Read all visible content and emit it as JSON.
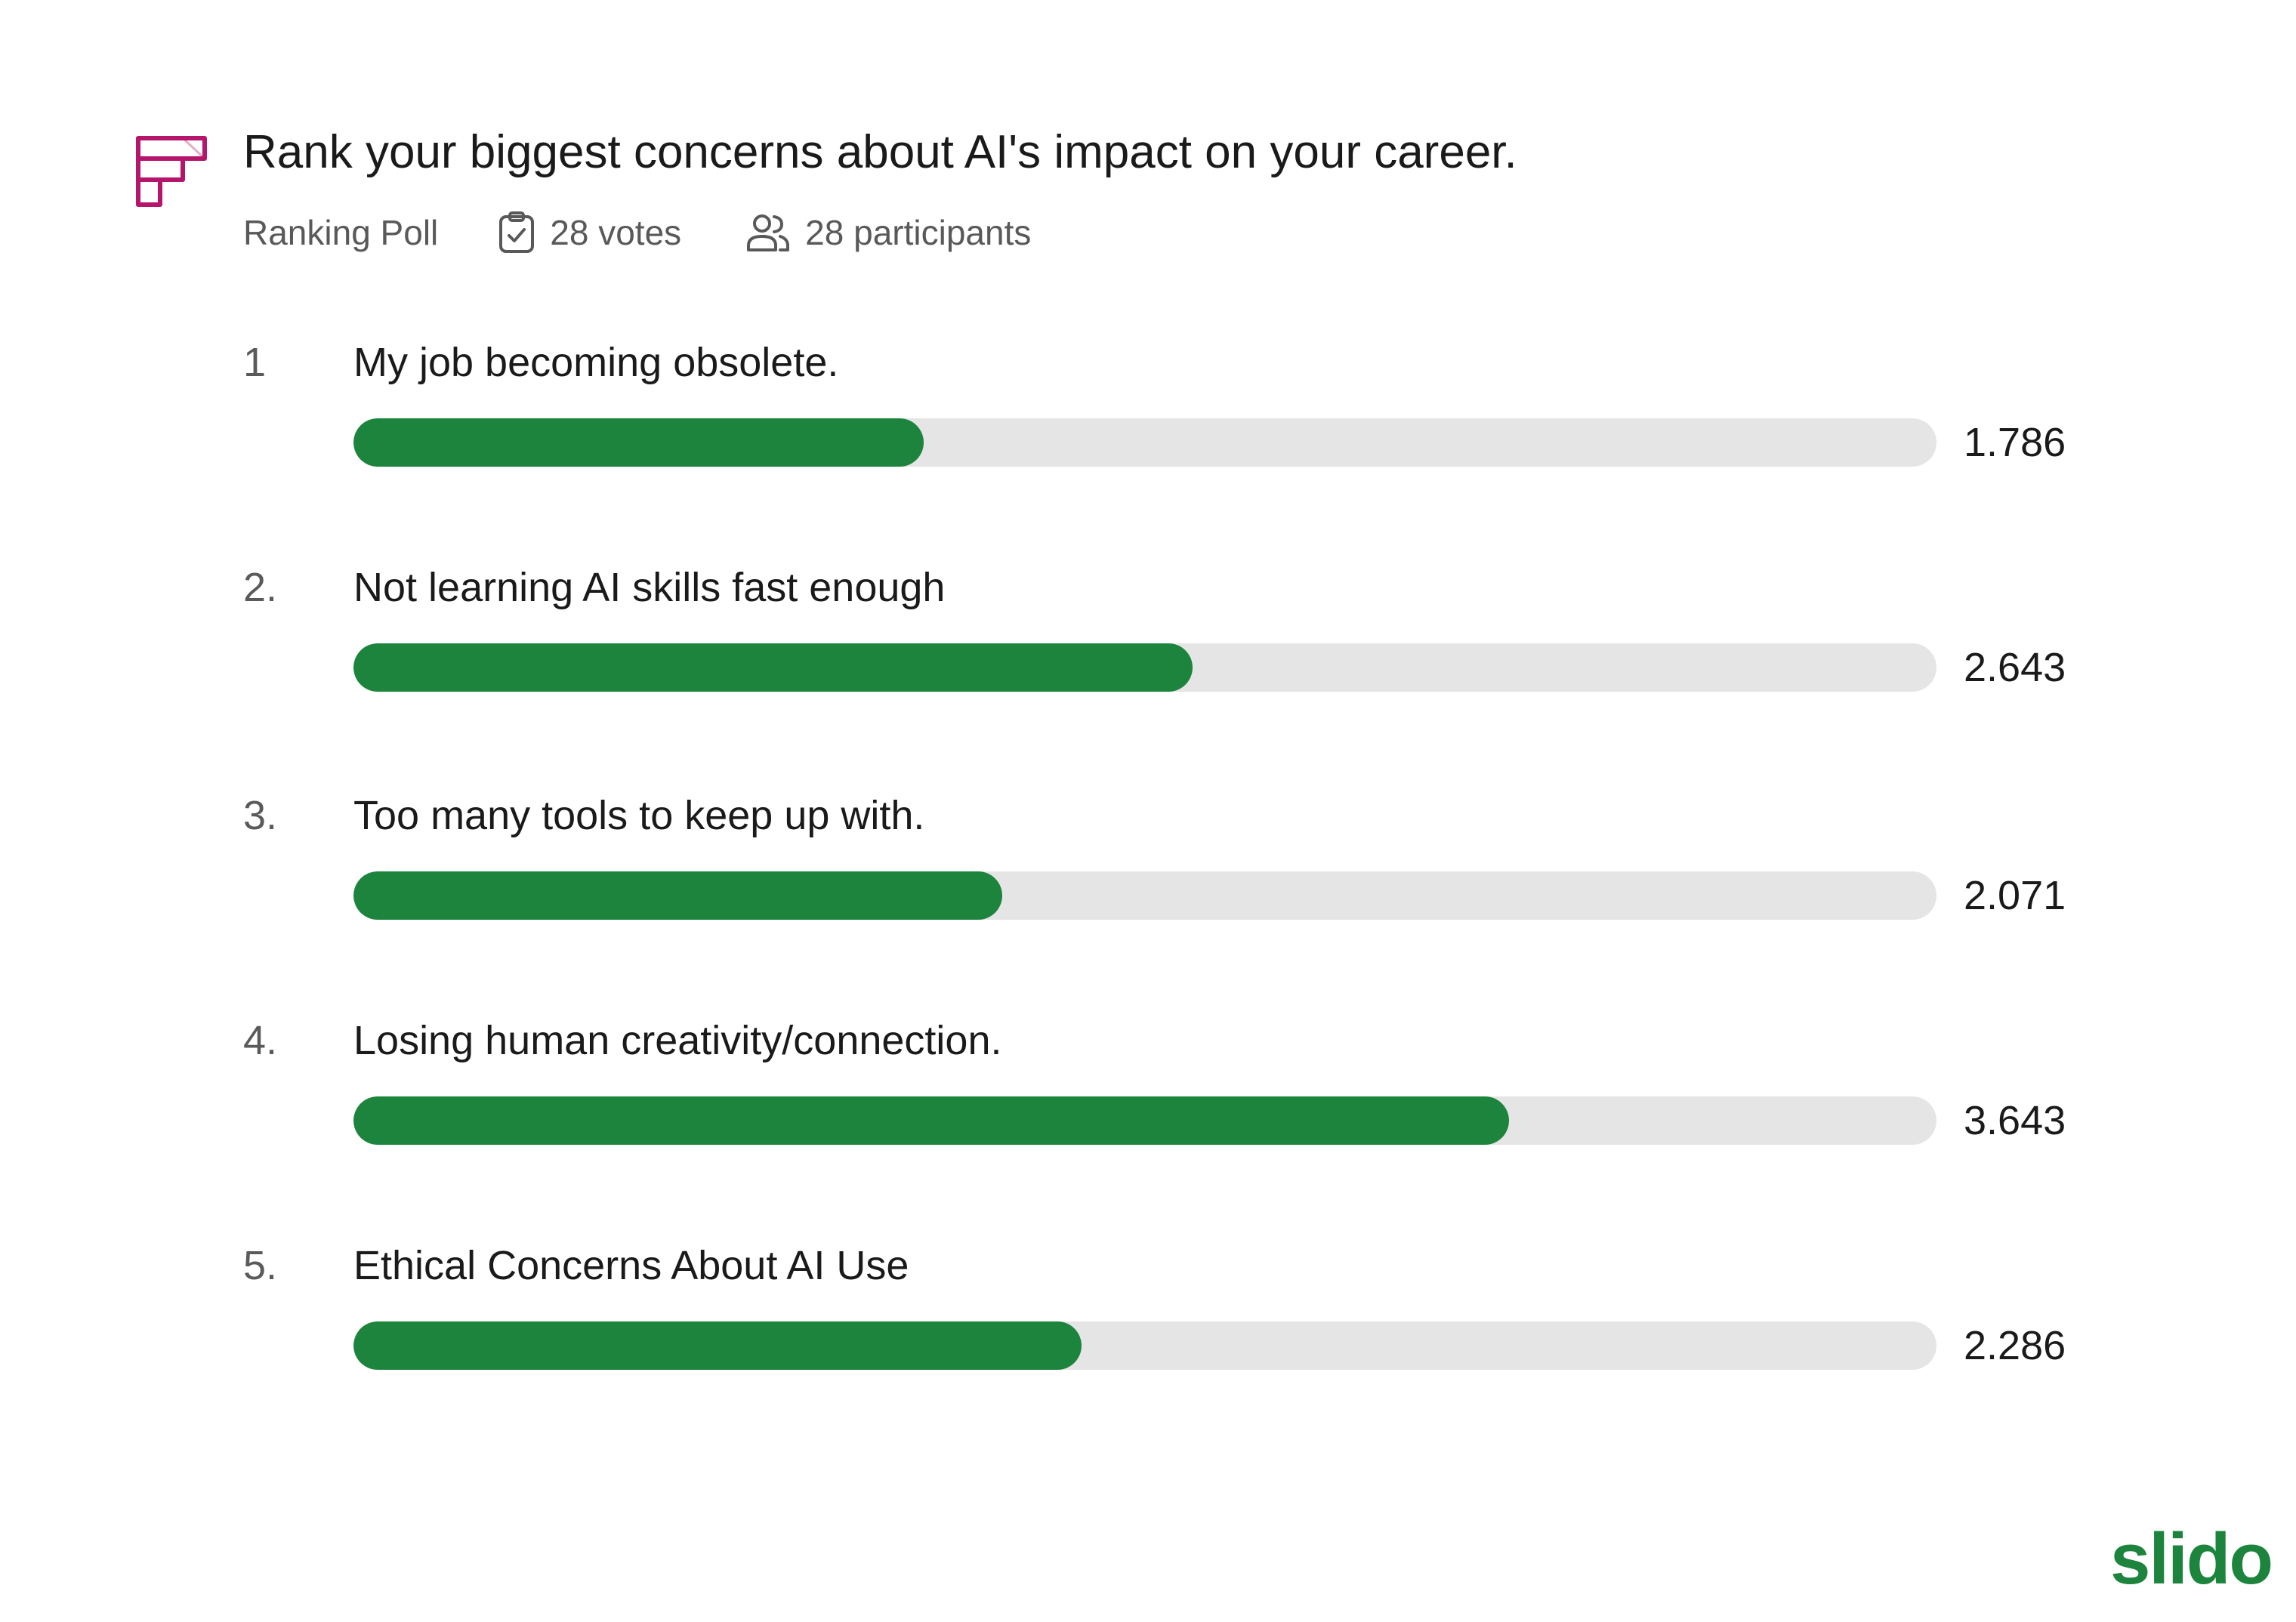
{
  "poll": {
    "title": "Rank your biggest concerns about AI's impact on your career.",
    "type": "Ranking Poll",
    "votes": "28 votes",
    "participants": "28 participants"
  },
  "icons": {
    "poll_type": "ranking-poll-icon",
    "votes": "clipboard-check-icon",
    "participants": "users-icon"
  },
  "colors": {
    "accent": "#1c843c",
    "track": "#e5e5e5",
    "poll_icon": "#b5166b",
    "brand": "#1c843c"
  },
  "items": [
    {
      "rank": "1",
      "label": "My job becoming obsolete.",
      "score": 1.786,
      "value_text": "1.786",
      "fill": 0.36
    },
    {
      "rank": "2.",
      "label": "Not learning AI skills fast enough",
      "score": 2.643,
      "value_text": "2.643",
      "fill": 0.53
    },
    {
      "rank": "3.",
      "label": "Too many tools to keep up with.",
      "score": 2.071,
      "value_text": "2.071",
      "fill": 0.41
    },
    {
      "rank": "4.",
      "label": "Losing human creativity/connection.",
      "score": 3.643,
      "value_text": "3.643",
      "fill": 0.73
    },
    {
      "rank": "5.",
      "label": "Ethical Concerns About AI Use",
      "score": 2.286,
      "value_text": "2.286",
      "fill": 0.46
    }
  ],
  "brand": {
    "name": "slido"
  }
}
